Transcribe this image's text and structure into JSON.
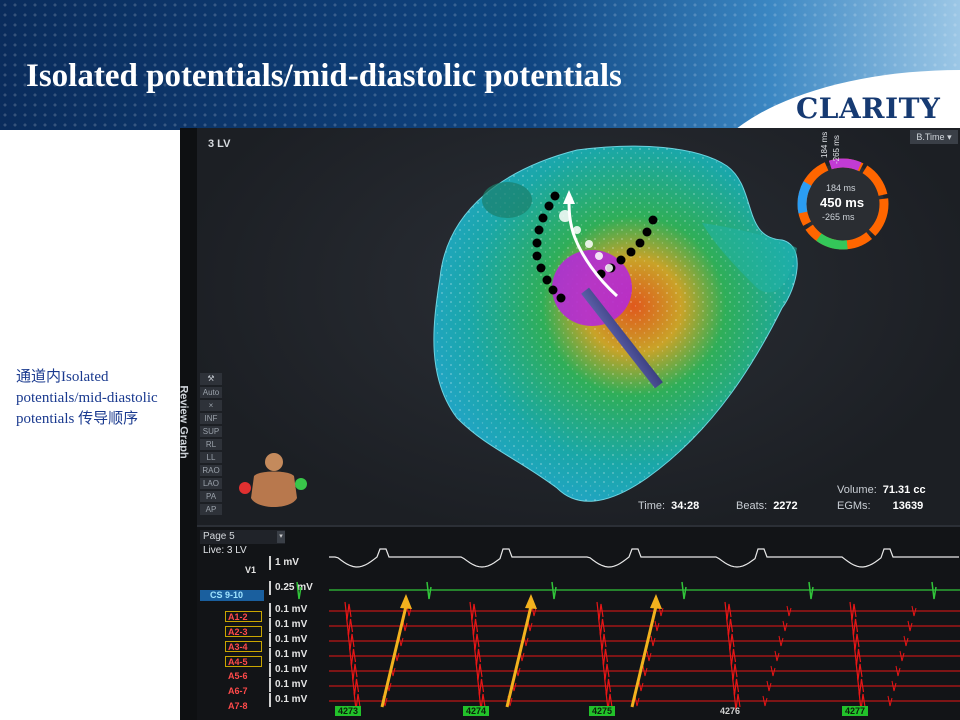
{
  "slide": {
    "title": "Isolated  potentials/mid-diastolic  potentials",
    "brand": "CLARITY",
    "note": "通道内Isolated potentials/mid-diastolic potentials 传导顺序"
  },
  "app": {
    "side_label": "Review Graph",
    "map_name": "3 LV",
    "btime_label": "B.Time",
    "ring": {
      "top": "184 ms",
      "center": "450 ms",
      "bottom": "-265 ms",
      "side_a": "184 ms",
      "side_b": "-265 ms"
    },
    "view_buttons": [
      "Auto",
      "×",
      "INF",
      "SUP",
      "RL",
      "LL",
      "RAO",
      "LAO",
      "PA",
      "AP"
    ],
    "stats": {
      "time_label": "Time:",
      "time_value": "34:28",
      "beats_label": "Beats:",
      "beats_value": "2272",
      "volume_label": "Volume:",
      "volume_value": "71.31 cc",
      "egms_label": "EGMs:",
      "egms_value": "13639"
    },
    "traces": {
      "page": "Page 5",
      "live": "Live: 3 LV",
      "channels": [
        {
          "label": "V1",
          "scale": "1 mV"
        },
        {
          "label": "CS 9-10",
          "scale": "0.25 mV"
        },
        {
          "label": "A1-2",
          "scale": "0.1 mV"
        },
        {
          "label": "A2-3",
          "scale": "0.1 mV"
        },
        {
          "label": "A3-4",
          "scale": "0.1 mV"
        },
        {
          "label": "A4-5",
          "scale": "0.1 mV"
        },
        {
          "label": "A5-6",
          "scale": "0.1 mV"
        },
        {
          "label": "A6-7",
          "scale": "0.1 mV"
        },
        {
          "label": "A7-8",
          "scale": "0.1 mV"
        }
      ],
      "beats": [
        "4273",
        "4274",
        "4275",
        "4276",
        "4277"
      ]
    }
  },
  "colors": {
    "trace_red": "#e81616",
    "trace_green": "#31c43a",
    "arrow": "#f2b21e"
  }
}
